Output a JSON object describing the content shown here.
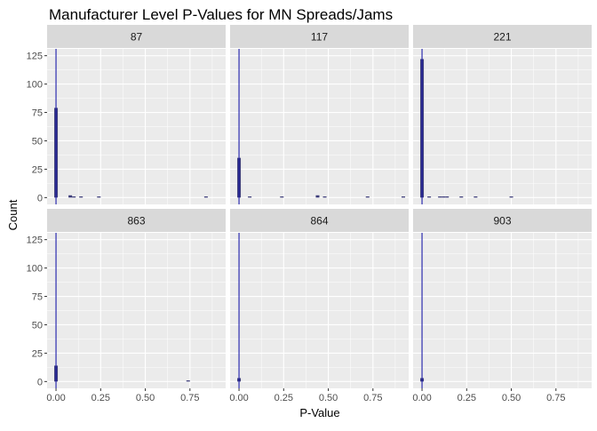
{
  "chart_data": {
    "type": "bar",
    "title": "Manufacturer Level P-Values for MN Spreads/Jams",
    "xlabel": "P-Value",
    "ylabel": "Count",
    "x_ticks": [
      "0.00",
      "0.25",
      "0.50",
      "0.75"
    ],
    "y_ticks": [
      "0",
      "25",
      "50",
      "75",
      "100",
      "125"
    ],
    "xlim": [
      -0.05,
      0.95
    ],
    "ylim": [
      -6,
      131
    ],
    "bin_width": 0.02,
    "reference_line_x": 0.0,
    "grid": true,
    "colors": {
      "bar_fill": "#3d3d7a",
      "reference_line": "#1a1aa8",
      "panel_bg": "#ebebeb",
      "strip_bg": "#d9d9d9",
      "grid": "#ffffff"
    },
    "panels": [
      {
        "label": "87",
        "bars": [
          {
            "x": 0.0,
            "count": 79
          },
          {
            "x": 0.08,
            "count": 2
          },
          {
            "x": 0.1,
            "count": 1
          },
          {
            "x": 0.14,
            "count": 1
          },
          {
            "x": 0.24,
            "count": 1
          },
          {
            "x": 0.84,
            "count": 1
          }
        ]
      },
      {
        "label": "117",
        "bars": [
          {
            "x": 0.0,
            "count": 35
          },
          {
            "x": 0.06,
            "count": 1
          },
          {
            "x": 0.24,
            "count": 1
          },
          {
            "x": 0.44,
            "count": 2
          },
          {
            "x": 0.48,
            "count": 1
          },
          {
            "x": 0.72,
            "count": 1
          },
          {
            "x": 0.92,
            "count": 1
          }
        ]
      },
      {
        "label": "221",
        "bars": [
          {
            "x": 0.0,
            "count": 122
          },
          {
            "x": 0.04,
            "count": 1
          },
          {
            "x": 0.1,
            "count": 1
          },
          {
            "x": 0.12,
            "count": 1
          },
          {
            "x": 0.14,
            "count": 1
          },
          {
            "x": 0.22,
            "count": 1
          },
          {
            "x": 0.3,
            "count": 1
          },
          {
            "x": 0.5,
            "count": 1
          }
        ]
      },
      {
        "label": "863",
        "bars": [
          {
            "x": 0.0,
            "count": 14
          },
          {
            "x": 0.74,
            "count": 1
          }
        ]
      },
      {
        "label": "864",
        "bars": [
          {
            "x": 0.0,
            "count": 3
          }
        ]
      },
      {
        "label": "903",
        "bars": [
          {
            "x": 0.0,
            "count": 3
          }
        ]
      }
    ]
  }
}
